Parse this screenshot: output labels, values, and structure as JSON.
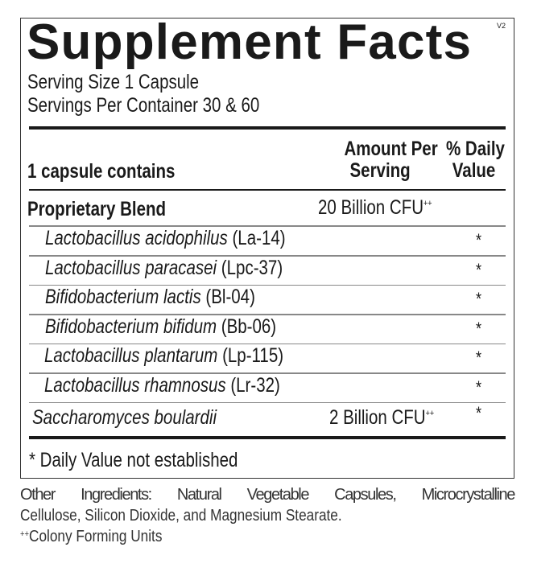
{
  "label": {
    "title": "Supplement Facts",
    "version": "V2",
    "serving_size": "Serving Size 1 Capsule",
    "servings_per_container": "Servings Per Container 30 & 60",
    "header": {
      "contains": "1 capsule contains",
      "amount_line1": "Amount Per",
      "amount_line2": "Serving",
      "dv_line1": "% Daily",
      "dv_line2": "Value"
    },
    "blend": {
      "name": "Proprietary Blend",
      "amount": "20 Billion CFU",
      "amount_sup": "++"
    },
    "strains": [
      {
        "species": "Lactobacillus acidophilus",
        "code": "(La-14)",
        "dv": "*"
      },
      {
        "species": "Lactobacillus paracasei",
        "code": "(Lpc-37)",
        "dv": "*"
      },
      {
        "species": "Bifidobacterium lactis",
        "code": "(Bl-04)",
        "dv": "*"
      },
      {
        "species": "Bifidobacterium bifidum",
        "code": "(Bb-06)",
        "dv": "*"
      },
      {
        "species": "Lactobacillus plantarum",
        "code": "(Lp-115)",
        "dv": "*"
      },
      {
        "species": "Lactobacillus rhamnosus",
        "code": "(Lr-32)",
        "dv": "*"
      }
    ],
    "yeast": {
      "name": "Saccharomyces boulardii",
      "amount": "2 Billion CFU",
      "amount_sup": "++",
      "dv": "*"
    },
    "footnote": "* Daily Value not established"
  },
  "other": {
    "line1": "Other Ingredients: Natural Vegetable Capsules, Microcrystalline",
    "line2": "Cellulose, Silicon Dioxide, and Magnesium Stearate.",
    "cfu_sup": "++",
    "cfu_note": "Colony Forming Units"
  }
}
